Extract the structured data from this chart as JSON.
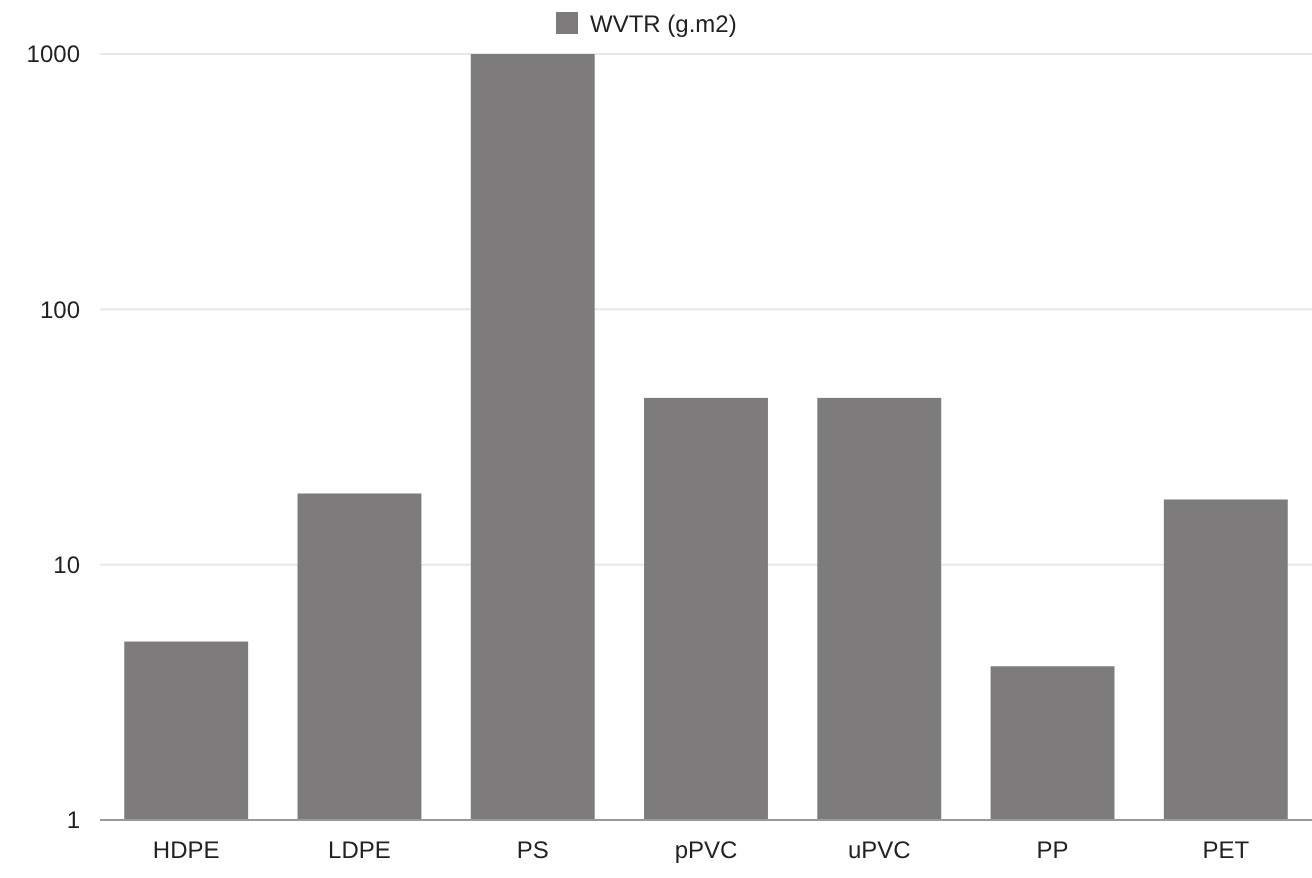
{
  "chart_data": {
    "type": "bar",
    "categories": [
      "HDPE",
      "LDPE",
      "PS",
      "pPVC",
      "uPVC",
      "PP",
      "PET"
    ],
    "series": [
      {
        "name": "WVTR (g.m2)",
        "color": "#7d7b7c",
        "values": [
          5,
          19,
          1000,
          45,
          45,
          4,
          18
        ]
      }
    ],
    "log": true,
    "ylim": [
      1,
      1000
    ],
    "yticks": [
      1,
      10,
      100,
      1000
    ],
    "grid": "y",
    "legend": "top"
  }
}
